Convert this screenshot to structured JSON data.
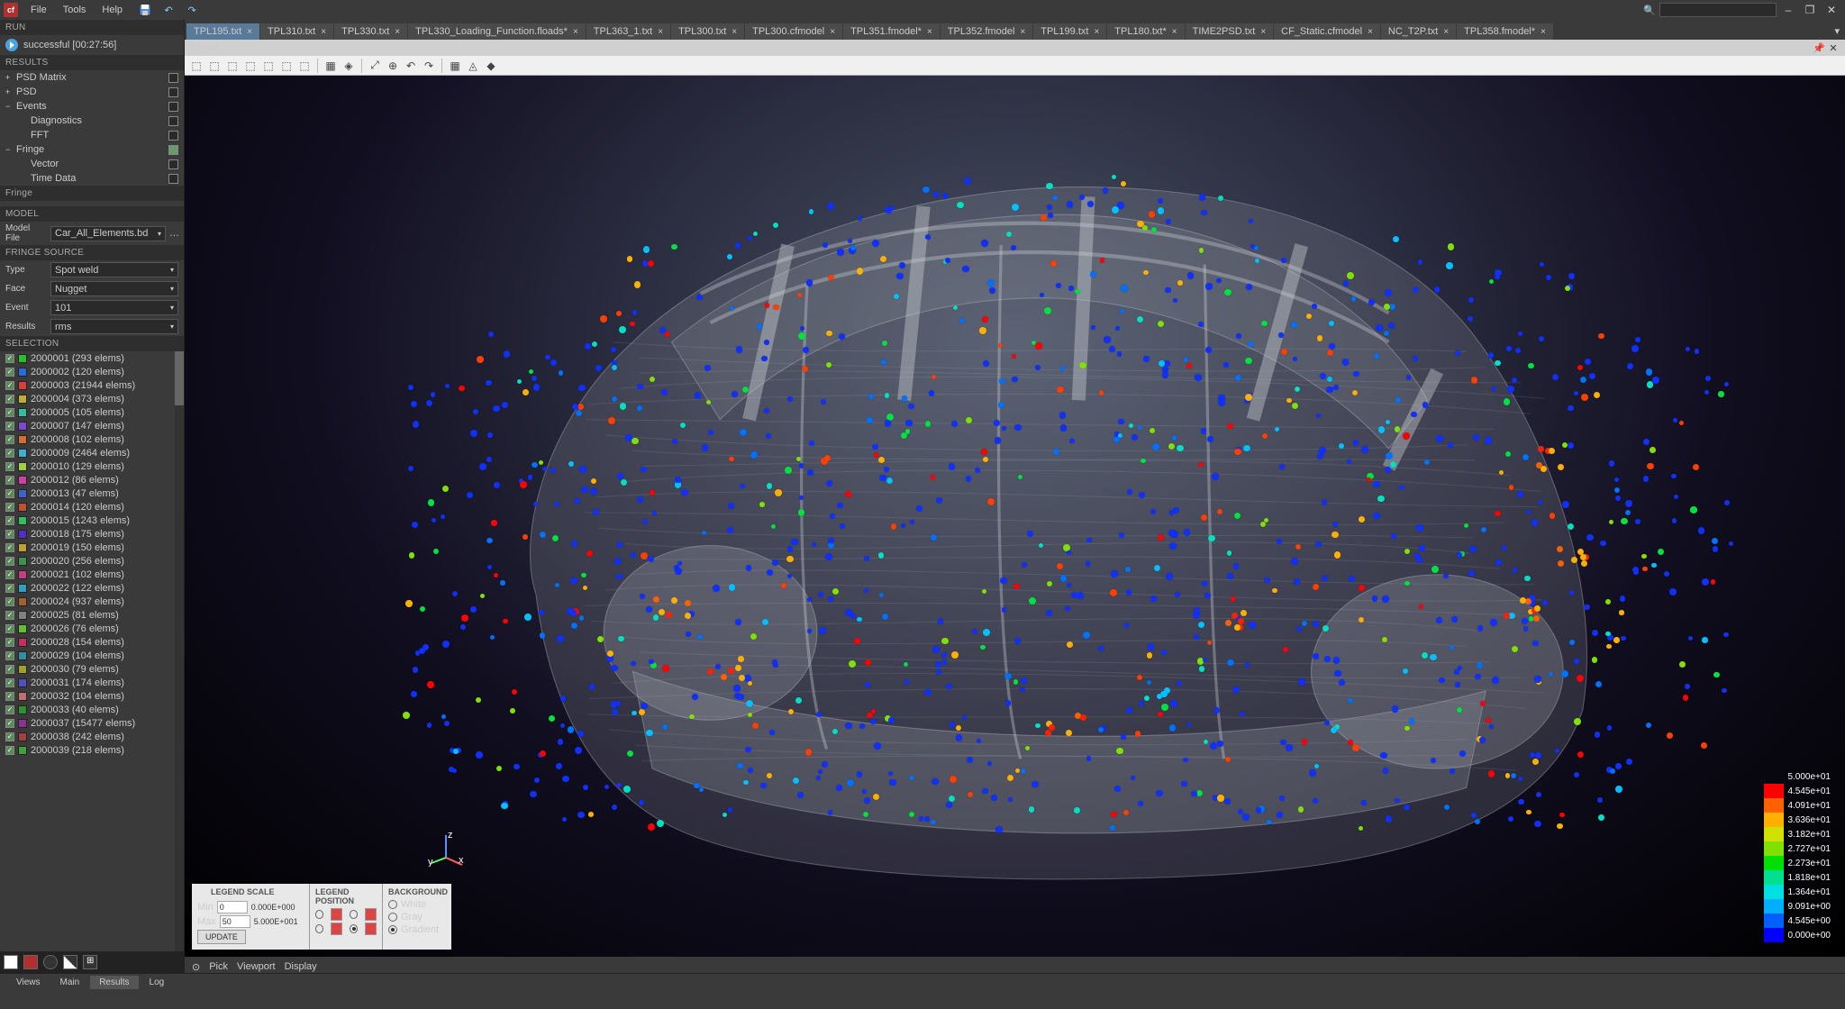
{
  "app": {
    "logo": "cf"
  },
  "menu": [
    "File",
    "Tools",
    "Help"
  ],
  "window_buttons": [
    "–",
    "❐",
    "✕"
  ],
  "run": {
    "header": "RUN",
    "status": "successful [00:27:56]"
  },
  "results": {
    "header": "RESULTS",
    "items": [
      {
        "label": "PSD Matrix",
        "indent": false,
        "checked": false,
        "exp": "+"
      },
      {
        "label": "PSD",
        "indent": false,
        "checked": false,
        "exp": "+"
      },
      {
        "label": "Events",
        "indent": false,
        "checked": false,
        "exp": "−"
      },
      {
        "label": "Diagnostics",
        "indent": true,
        "checked": false,
        "exp": ""
      },
      {
        "label": "FFT",
        "indent": true,
        "checked": false,
        "exp": ""
      },
      {
        "label": "Fringe",
        "indent": false,
        "checked": true,
        "exp": "−"
      },
      {
        "label": "Vector",
        "indent": true,
        "checked": false,
        "exp": ""
      },
      {
        "label": "Time Data",
        "indent": true,
        "checked": false,
        "exp": ""
      }
    ]
  },
  "fringe": {
    "header": "Fringe"
  },
  "model": {
    "header": "MODEL",
    "label": "Model File",
    "value": "Car_All_Elements.bd"
  },
  "fringe_source": {
    "header": "FRINGE SOURCE",
    "rows": [
      {
        "label": "Type",
        "value": "Spot weld"
      },
      {
        "label": "Face",
        "value": "Nugget"
      },
      {
        "label": "Event",
        "value": "101"
      },
      {
        "label": "Results",
        "value": "rms"
      }
    ]
  },
  "selection": {
    "header": "SELECTION",
    "swatches": [
      "#28c228",
      "#2a6adf",
      "#d84040",
      "#c0b030",
      "#30c0a0",
      "#8048d0",
      "#d07030",
      "#40b0d0",
      "#a0d040",
      "#d040a0",
      "#4060d0",
      "#c05030",
      "#30c060",
      "#5030c0",
      "#c0a030",
      "#409050",
      "#c04080",
      "#30a0c0",
      "#a06030",
      "#808080",
      "#60c030",
      "#c03060",
      "#3090a0",
      "#a0a030",
      "#5050c0",
      "#c07070",
      "#309030",
      "#903090",
      "#a04040",
      "#40a040"
    ],
    "items": [
      {
        "id": "2000001",
        "count": 293
      },
      {
        "id": "2000002",
        "count": 120
      },
      {
        "id": "2000003",
        "count": 21944
      },
      {
        "id": "2000004",
        "count": 373
      },
      {
        "id": "2000005",
        "count": 105
      },
      {
        "id": "2000007",
        "count": 147
      },
      {
        "id": "2000008",
        "count": 102
      },
      {
        "id": "2000009",
        "count": 2464
      },
      {
        "id": "2000010",
        "count": 129
      },
      {
        "id": "2000012",
        "count": 86
      },
      {
        "id": "2000013",
        "count": 47
      },
      {
        "id": "2000014",
        "count": 120
      },
      {
        "id": "2000015",
        "count": 1243
      },
      {
        "id": "2000018",
        "count": 175
      },
      {
        "id": "2000019",
        "count": 150
      },
      {
        "id": "2000020",
        "count": 256
      },
      {
        "id": "2000021",
        "count": 102
      },
      {
        "id": "2000022",
        "count": 122
      },
      {
        "id": "2000024",
        "count": 937
      },
      {
        "id": "2000025",
        "count": 81
      },
      {
        "id": "2000026",
        "count": 76
      },
      {
        "id": "2000028",
        "count": 154
      },
      {
        "id": "2000029",
        "count": 104
      },
      {
        "id": "2000030",
        "count": 79
      },
      {
        "id": "2000031",
        "count": 174
      },
      {
        "id": "2000032",
        "count": 104
      },
      {
        "id": "2000033",
        "count": 40
      },
      {
        "id": "2000037",
        "count": 15477
      },
      {
        "id": "2000038",
        "count": 242
      },
      {
        "id": "2000039",
        "count": 218
      }
    ]
  },
  "tabs": [
    {
      "label": "TPL195.txt",
      "active": true
    },
    {
      "label": "TPL310.txt"
    },
    {
      "label": "TPL330.txt"
    },
    {
      "label": "TPL330_Loading_Function.floads*"
    },
    {
      "label": "TPL363_1.txt"
    },
    {
      "label": "TPL300.txt"
    },
    {
      "label": "TPL300.cfmodel"
    },
    {
      "label": "TPL351.fmodel*"
    },
    {
      "label": "TPL352.fmodel"
    },
    {
      "label": "TPL199.txt"
    },
    {
      "label": "TPL180.txt*"
    },
    {
      "label": "TIME2PSD.txt"
    },
    {
      "label": "CF_Static.cfmodel"
    },
    {
      "label": "NC_T2P.txt"
    },
    {
      "label": "TPL358.fmodel*"
    }
  ],
  "tabstrip_collapse": "▾",
  "doc": {
    "title": "Fringe",
    "pin": "📌",
    "close": "✕"
  },
  "toolbar2": [
    "⬚",
    "⬚",
    "⬚",
    "⬚",
    "⬚",
    "⬚",
    "⬚",
    "|",
    "▦",
    "◈",
    "|",
    "⤢",
    "⊕",
    "↶",
    "↷",
    "|",
    "▦",
    "◬",
    "◆"
  ],
  "legend": {
    "colors": [
      "#0000ff",
      "#0060ff",
      "#00b0ff",
      "#00e0e0",
      "#00e090",
      "#00e000",
      "#80e000",
      "#d0e000",
      "#ffb000",
      "#ff6000",
      "#ff0000"
    ],
    "labels": [
      "0.000e+00",
      "4.545e+00",
      "9.091e+00",
      "1.364e+01",
      "1.818e+01",
      "2.273e+01",
      "2.727e+01",
      "3.182e+01",
      "3.636e+01",
      "4.091e+01",
      "4.545e+01",
      "5.000e+01"
    ]
  },
  "overlay": {
    "scale": {
      "header": "LEGEND SCALE",
      "checked": true,
      "min_label": "Min",
      "min_val": "0",
      "min_sci": "0.000E+000",
      "max_label": "Max",
      "max_val": "50",
      "max_sci": "5.000E+001",
      "update": "UPDATE"
    },
    "pos": {
      "header": "LEGEND POSITION"
    },
    "bg": {
      "header": "BACKGROUND",
      "options": [
        "White",
        "Gray",
        "Gradient"
      ],
      "selected": 2
    }
  },
  "status_hint": {
    "items": [
      "⊙",
      "Pick",
      "Viewport",
      "Display"
    ]
  },
  "bottom_tabs": [
    {
      "label": "Views"
    },
    {
      "label": "Main"
    },
    {
      "label": "Results",
      "active": true
    },
    {
      "label": "Log"
    }
  ],
  "viewport": {
    "dot_palette": [
      "#1030ff",
      "#1030ff",
      "#1030ff",
      "#1030ff",
      "#1030ff",
      "#1030ff",
      "#1030ff",
      "#1030ff",
      "#1030ff",
      "#1030ff",
      "#1030ff",
      "#0070ff",
      "#0070ff",
      "#00c0ff",
      "#00e0c0",
      "#00e040",
      "#80e000",
      "#ffb000",
      "#ff4000",
      "#ff0000"
    ],
    "car_gray": "#9aa0a8"
  }
}
